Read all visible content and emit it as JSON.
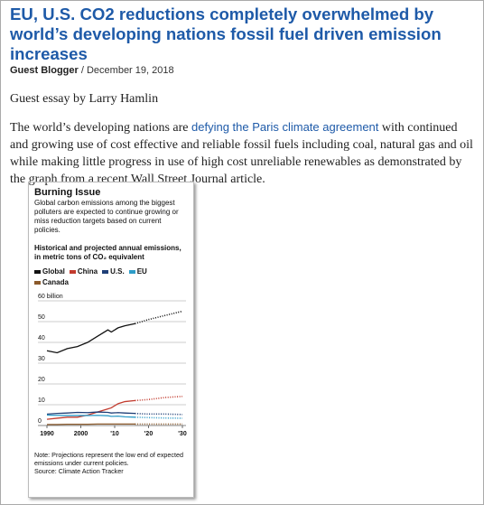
{
  "article": {
    "title": "EU, U.S. CO2 reductions completely overwhelmed by world’s developing nations fossil fuel driven emission increases",
    "author": "Guest Blogger",
    "byline_separator": "/",
    "date": "December 19, 2018",
    "intro": "Guest essay by Larry Hamlin",
    "paragraph": {
      "before_link": "The world’s developing nations are ",
      "link": "defying the Paris climate agreement",
      "after_link": " with continued and growing use of cost effective and reliable fossil fuels including coal, natural gas and oil while making little progress in use of high cost unreliable renewables as demonstrated by the graph from a recent Wall Street Journal article."
    }
  },
  "chart_data": {
    "type": "line",
    "title": "Burning Issue",
    "subtitle": "Global carbon emissions among the biggest polluters are expected to continue growing or miss reduction targets based on current policies.",
    "y_label": "Historical and projected annual emissions, in metric tons of CO₂ equivalent",
    "note": "Note: Projections represent the low end of expected emissions under current policies.",
    "source": "Source: Climate Action Tracker",
    "x": [
      1990,
      1993,
      1996,
      1999,
      2002,
      2005,
      2008,
      2009,
      2011,
      2013,
      2016,
      2020,
      2025,
      2030
    ],
    "projection_start": 2016,
    "series": [
      {
        "name": "Global",
        "color": "#111111",
        "values": [
          36,
          35,
          37,
          38,
          40,
          43,
          46,
          45,
          47,
          48,
          49,
          51,
          53,
          55
        ]
      },
      {
        "name": "China",
        "color": "#c23b2e",
        "values": [
          3,
          3.5,
          4,
          4,
          5,
          6.5,
          8,
          8.5,
          10.5,
          11.5,
          12,
          12.5,
          13.5,
          14
        ]
      },
      {
        "name": "U.S.",
        "color": "#1f3f77",
        "values": [
          5.5,
          5.8,
          6,
          6.3,
          6.2,
          6.5,
          6.3,
          6,
          6.2,
          6,
          5.8,
          5.5,
          5.5,
          5.3
        ]
      },
      {
        "name": "EU",
        "color": "#2e9cc8",
        "values": [
          5,
          4.9,
          4.8,
          4.8,
          4.8,
          4.9,
          4.7,
          4.4,
          4.5,
          4.2,
          4,
          3.8,
          3.6,
          3.5
        ]
      },
      {
        "name": "Canada",
        "color": "#8b5a2b",
        "values": [
          0.5,
          0.5,
          0.6,
          0.6,
          0.6,
          0.7,
          0.7,
          0.7,
          0.7,
          0.7,
          0.7,
          0.7,
          0.7,
          0.7
        ]
      }
    ],
    "xlim": [
      1990,
      2030
    ],
    "xticks": [
      1990,
      2000,
      {
        "value": 2010,
        "label": "'10"
      },
      {
        "value": 2020,
        "label": "'20"
      },
      {
        "value": 2030,
        "label": "'30"
      }
    ],
    "ylim": [
      0,
      60
    ],
    "yticks": [
      0,
      10,
      20,
      30,
      40,
      50,
      {
        "value": 60,
        "label": "60 billion"
      }
    ],
    "grid": true
  }
}
